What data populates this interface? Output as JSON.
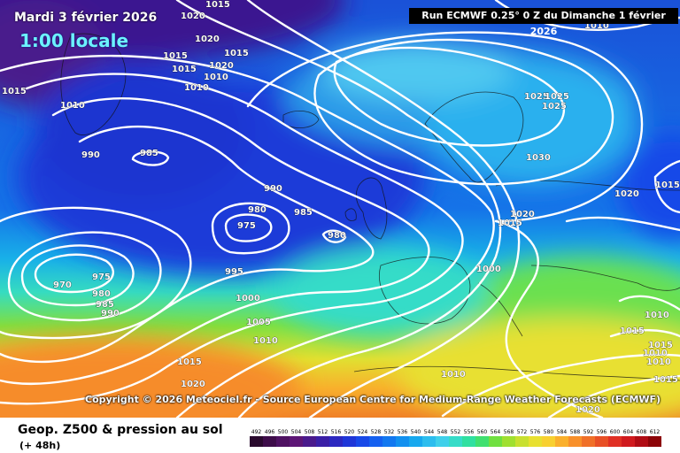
{
  "title": {
    "date": "Mardi 3 février 2026",
    "time": "1:00 locale"
  },
  "run_info": "Run ECMWF 0.25° 0 Z du Dimanche 1 février 2026",
  "copyright": "Copyright © 2026 Meteociel.fr - Source European Centre for Medium-Range Weather Forecasts (ECMWF)",
  "legend": {
    "title": "Geop. Z500 & pression au sol",
    "subtitle": "(+ 48h)",
    "ticks": [
      "492",
      "496",
      "500",
      "504",
      "508",
      "512",
      "516",
      "520",
      "524",
      "528",
      "532",
      "536",
      "540",
      "544",
      "548",
      "552",
      "556",
      "560",
      "564",
      "568",
      "572",
      "576",
      "580",
      "584",
      "588",
      "592",
      "596",
      "600",
      "604",
      "608",
      "612"
    ],
    "colors": [
      "#2a0a2e",
      "#3e0d4a",
      "#4f1262",
      "#5d1676",
      "#4a1a8c",
      "#3a1fa6",
      "#2c28c0",
      "#1f36d8",
      "#1849e8",
      "#1460f0",
      "#1278f0",
      "#1290ef",
      "#17a8ee",
      "#2cbdee",
      "#3fd0ea",
      "#36dcc8",
      "#2fe0a0",
      "#40e070",
      "#70e040",
      "#a0e030",
      "#c8e030",
      "#e8e030",
      "#f8d030",
      "#fab02c",
      "#f8902a",
      "#f07028",
      "#e85026",
      "#e03024",
      "#d01a1e",
      "#b00c14",
      "#8c0408"
    ]
  },
  "isobar_labels": [
    "1015",
    "1020",
    "1020",
    "1020",
    "1015",
    "1015",
    "1015",
    "1015",
    "1010",
    "1010",
    "1010",
    "990",
    "985",
    "990",
    "985",
    "980",
    "975",
    "980",
    "970",
    "975",
    "980",
    "985",
    "990",
    "995",
    "1000",
    "1005",
    "1010",
    "1015",
    "1020",
    "1025",
    "1025",
    "1025",
    "1030",
    "1020",
    "1015",
    "1020",
    "1015",
    "1000",
    "1010",
    "1015",
    "1015",
    "1010",
    "1010",
    "1010",
    "1015",
    "1020",
    "1010"
  ]
}
